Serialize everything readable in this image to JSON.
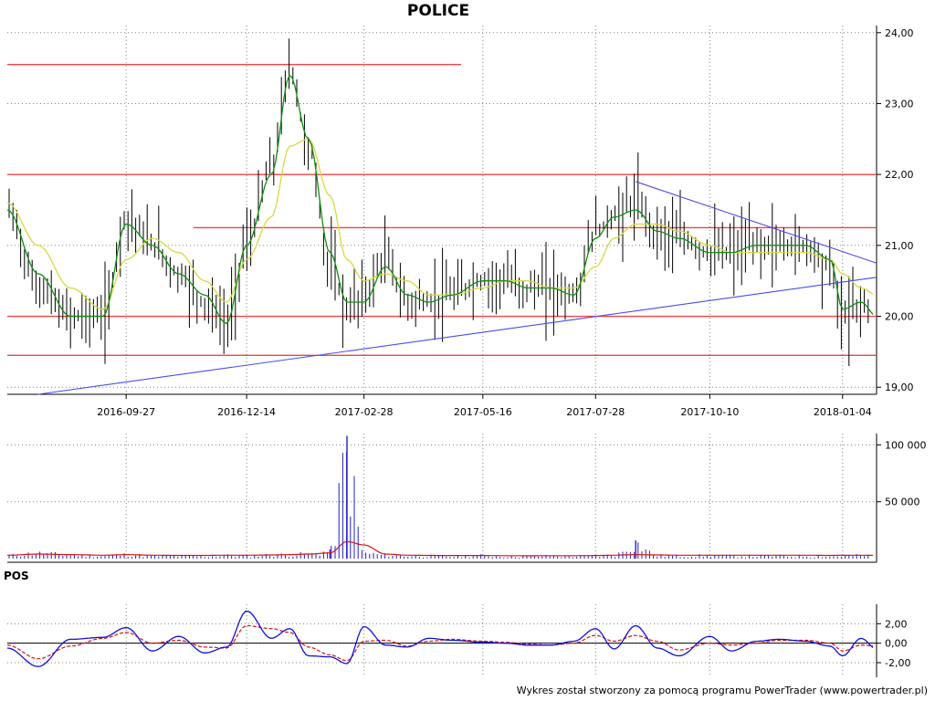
{
  "title": "POLICE",
  "indicator_title": "POS",
  "footer": "Wykres został stworzony za pomocą programu PowerTrader (www.powertrader.pl)",
  "colors": {
    "candle": "#000000",
    "short_ma": "#109010",
    "long_ma": "#d8d840",
    "horizontal_levels": "#ee4444",
    "trend_lines": "#4b4bee",
    "volume_bars": "#2020cc",
    "volume_ma": "#dd1111",
    "pos_line": "#1010dd",
    "pos_signal": "#dd1111"
  },
  "chart_data": [
    {
      "type": "line",
      "name": "price",
      "x_ticks": [
        "2016-09-27",
        "2016-12-14",
        "2017-02-28",
        "2017-05-16",
        "2017-07-28",
        "2017-10-10",
        "2018-01-04"
      ],
      "y_ticks": [
        "19,00",
        "20,00",
        "21,00",
        "22,00",
        "23,00",
        "24,00"
      ],
      "ylim": [
        18.9,
        24.1
      ],
      "grid": true,
      "x_sample": [
        "2016-07-12",
        "2016-08-01",
        "2016-08-22",
        "2016-09-12",
        "2016-09-27",
        "2016-10-14",
        "2016-10-31",
        "2016-11-17",
        "2016-12-01",
        "2016-12-14",
        "2016-12-30",
        "2017-01-11",
        "2017-01-23",
        "2017-02-06",
        "2017-02-17",
        "2017-02-28",
        "2017-03-14",
        "2017-03-28",
        "2017-04-11",
        "2017-04-26",
        "2017-05-16",
        "2017-05-31",
        "2017-06-14",
        "2017-06-29",
        "2017-07-14",
        "2017-07-28",
        "2017-08-09",
        "2017-08-23",
        "2017-09-06",
        "2017-09-20",
        "2017-10-10",
        "2017-10-24",
        "2017-11-09",
        "2017-11-24",
        "2017-12-11",
        "2017-12-27",
        "2018-01-04",
        "2018-01-16",
        "2018-01-26"
      ],
      "close": [
        21.5,
        20.4,
        20.0,
        20.0,
        21.4,
        21.0,
        20.6,
        20.2,
        19.9,
        21.0,
        22.1,
        23.5,
        22.4,
        20.7,
        20.1,
        20.3,
        20.8,
        20.2,
        20.2,
        20.3,
        20.5,
        20.5,
        20.4,
        20.4,
        20.3,
        21.2,
        21.4,
        21.6,
        21.2,
        21.1,
        20.9,
        20.9,
        21.0,
        21.0,
        21.0,
        20.7,
        20.0,
        20.2,
        20.0
      ],
      "moving_average_short": [
        21.5,
        20.6,
        20.0,
        20.0,
        21.3,
        21.0,
        20.6,
        20.3,
        19.9,
        21.0,
        22.0,
        23.4,
        22.5,
        20.9,
        20.2,
        20.2,
        20.7,
        20.3,
        20.2,
        20.3,
        20.5,
        20.5,
        20.4,
        20.4,
        20.3,
        21.1,
        21.4,
        21.5,
        21.2,
        21.1,
        20.9,
        20.9,
        21.0,
        21.0,
        21.0,
        20.8,
        20.1,
        20.2,
        20.0
      ],
      "moving_average_long": [
        21.6,
        21.0,
        20.4,
        20.1,
        20.8,
        21.1,
        20.9,
        20.5,
        20.2,
        20.8,
        21.4,
        22.4,
        22.5,
        21.7,
        20.8,
        20.5,
        20.6,
        20.5,
        20.3,
        20.3,
        20.4,
        20.5,
        20.5,
        20.4,
        20.4,
        20.7,
        21.1,
        21.3,
        21.3,
        21.2,
        21.0,
        20.9,
        20.9,
        20.9,
        20.9,
        20.8,
        20.6,
        20.4,
        20.3
      ],
      "horizontal_levels": [
        23.55,
        22.0,
        21.25,
        20.0,
        19.45
      ],
      "trend_lines": [
        {
          "from": [
            "2016-08-01",
            18.9
          ],
          "to": [
            "2018-01-26",
            20.55
          ]
        },
        {
          "from": [
            "2017-08-23",
            21.9
          ],
          "to": [
            "2018-01-26",
            20.75
          ]
        }
      ]
    },
    {
      "type": "bar",
      "name": "volume",
      "y_ticks": [
        "50 000",
        "100 000"
      ],
      "ylim": [
        0,
        110000
      ],
      "x_sample": [
        "2016-07-12",
        "2016-08-01",
        "2016-08-22",
        "2016-09-12",
        "2016-09-27",
        "2016-10-14",
        "2016-10-31",
        "2016-11-17",
        "2016-12-01",
        "2016-12-14",
        "2016-12-30",
        "2017-01-11",
        "2017-01-23",
        "2017-02-06",
        "2017-02-17",
        "2017-02-28",
        "2017-03-14",
        "2017-03-28",
        "2017-04-11",
        "2017-04-26",
        "2017-05-16",
        "2017-05-31",
        "2017-06-14",
        "2017-06-29",
        "2017-07-14",
        "2017-07-28",
        "2017-08-09",
        "2017-08-23",
        "2017-09-06",
        "2017-09-20",
        "2017-10-10",
        "2017-10-24",
        "2017-11-09",
        "2017-11-24",
        "2017-12-11",
        "2017-12-27",
        "2018-01-04",
        "2018-01-16",
        "2018-01-26"
      ],
      "values": [
        3500,
        6000,
        4000,
        3000,
        4500,
        3000,
        3000,
        2500,
        3500,
        3000,
        4000,
        4500,
        5000,
        8000,
        108000,
        6000,
        4000,
        3000,
        3000,
        2500,
        3500,
        2500,
        2500,
        3000,
        2500,
        3000,
        4000,
        16000,
        3500,
        3000,
        3500,
        3000,
        3000,
        3000,
        3000,
        2500,
        3000,
        3500,
        2500
      ],
      "moving_average": [
        3000,
        4000,
        3500,
        3000,
        3500,
        3000,
        2800,
        2800,
        3000,
        3000,
        3200,
        3500,
        4000,
        5000,
        15000,
        12000,
        4000,
        3000,
        2800,
        2700,
        2700,
        2600,
        2500,
        2600,
        2600,
        2700,
        3000,
        3500,
        3200,
        3000,
        3000,
        3000,
        3000,
        3000,
        3000,
        2800,
        2900,
        3000,
        2800
      ]
    },
    {
      "type": "line",
      "name": "POS",
      "y_ticks": [
        "-2,00",
        "0,00",
        "2,00"
      ],
      "ylim": [
        -3.5,
        4.0
      ],
      "x_sample": [
        "2016-07-12",
        "2016-08-01",
        "2016-08-22",
        "2016-09-12",
        "2016-09-27",
        "2016-10-14",
        "2016-10-31",
        "2016-11-17",
        "2016-12-01",
        "2016-12-14",
        "2016-12-30",
        "2017-01-11",
        "2017-01-23",
        "2017-02-06",
        "2017-02-17",
        "2017-02-28",
        "2017-03-14",
        "2017-03-28",
        "2017-04-11",
        "2017-04-26",
        "2017-05-16",
        "2017-05-31",
        "2017-06-14",
        "2017-06-29",
        "2017-07-14",
        "2017-07-28",
        "2017-08-09",
        "2017-08-23",
        "2017-09-06",
        "2017-09-20",
        "2017-10-10",
        "2017-10-24",
        "2017-11-09",
        "2017-11-24",
        "2017-12-11",
        "2017-12-27",
        "2018-01-04",
        "2018-01-16",
        "2018-01-26"
      ],
      "values": [
        -0.5,
        -2.4,
        0.4,
        0.6,
        1.6,
        -0.8,
        0.7,
        -1.0,
        -0.4,
        3.3,
        0.5,
        1.5,
        -1.3,
        -1.4,
        -2.1,
        1.7,
        -0.2,
        -0.4,
        0.5,
        0.3,
        0.1,
        0.0,
        -0.2,
        -0.2,
        0.2,
        1.5,
        -0.6,
        1.8,
        -0.5,
        -1.3,
        0.7,
        -0.8,
        0.2,
        0.4,
        0.2,
        -0.3,
        -1.3,
        0.5,
        -0.6
      ],
      "signal": [
        -0.2,
        -1.6,
        -0.3,
        0.5,
        1.1,
        0.0,
        0.3,
        -0.4,
        -0.5,
        1.8,
        1.5,
        1.1,
        -0.4,
        -1.2,
        -1.8,
        0.2,
        0.3,
        -0.3,
        0.2,
        0.4,
        0.2,
        0.1,
        -0.1,
        -0.2,
        0.0,
        0.8,
        0.2,
        0.8,
        0.2,
        -0.7,
        0.0,
        -0.2,
        0.0,
        0.3,
        0.3,
        0.0,
        -0.8,
        -0.2,
        -0.3
      ]
    }
  ]
}
